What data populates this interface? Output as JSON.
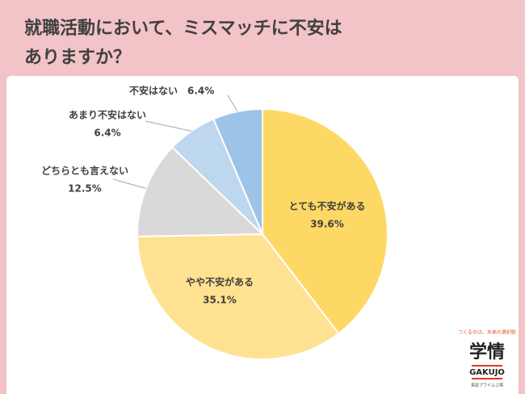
{
  "chart_data": {
    "type": "pie",
    "title": [
      "就職活動において、ミスマッチに不安は",
      "ありますか？"
    ],
    "categories": [
      "とても不安がある",
      "やや不安がある",
      "どちらとも言えない",
      "あまり不安はない",
      "不安はない"
    ],
    "values": [
      39.6,
      35.1,
      12.5,
      6.4,
      6.4
    ],
    "value_labels": [
      "39.6%",
      "35.1%",
      "12.5%",
      "6.4%",
      "6.4%"
    ],
    "colors": [
      "#fed864",
      "#fee291",
      "#d9d9d9",
      "#bdd7ee",
      "#9dc3e6"
    ]
  },
  "logo": {
    "tagline": "つくるのは、未来の選択肢",
    "name": "学情",
    "romaji": "GAKUJO",
    "note": "東証プライム上場"
  }
}
